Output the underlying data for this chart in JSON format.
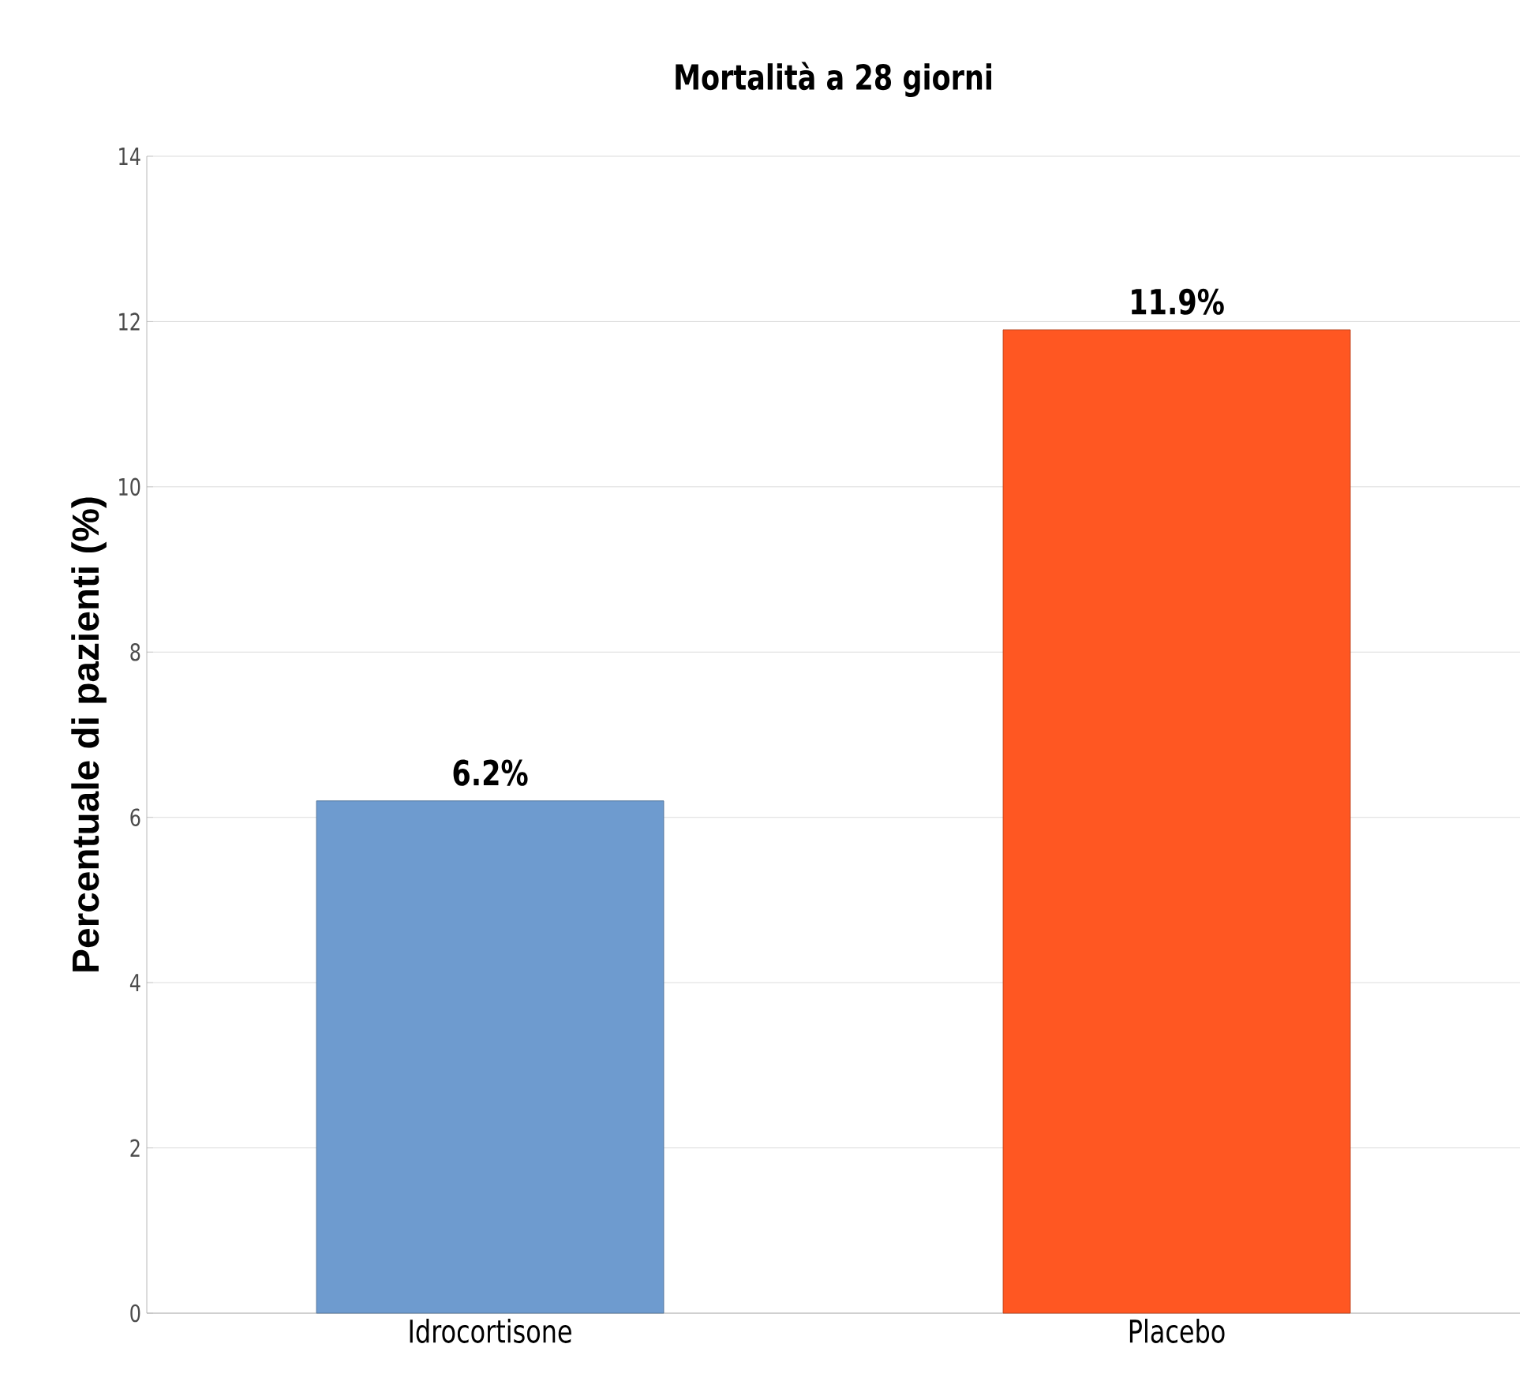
{
  "chart_data": {
    "type": "bar",
    "title": "Mortalità a 28 giorni",
    "ylabel": "Percentuale di pazienti (%)",
    "categories": [
      "Idrocortisone",
      "Placebo"
    ],
    "values": [
      6.2,
      11.9
    ],
    "colors": [
      "#6e9bcf",
      "#ff5722"
    ],
    "value_labels": [
      "6.2%",
      "11.9%"
    ],
    "ylim": [
      0,
      14
    ],
    "yticks": [
      0,
      2,
      4,
      6,
      8,
      10,
      12,
      14
    ],
    "grid": "y"
  }
}
